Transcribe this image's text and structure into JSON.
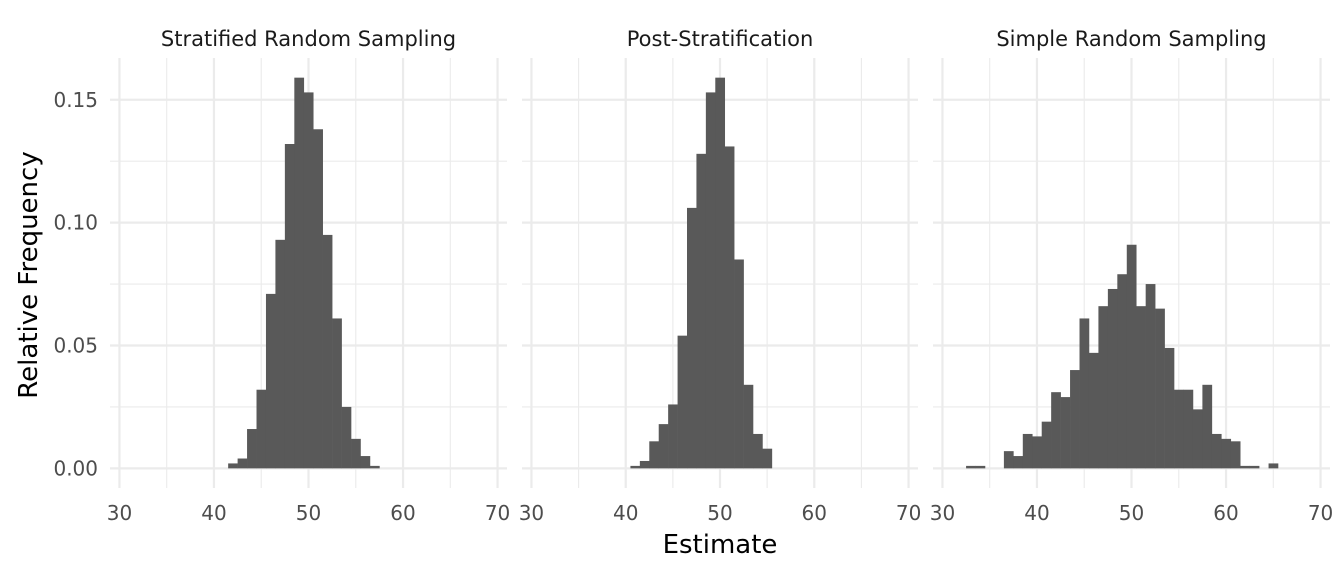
{
  "chart_data": {
    "type": "bar",
    "subtype": "histogram",
    "xlabel": "Estimate",
    "ylabel": "Relative Frequency",
    "xlim": [
      29,
      71
    ],
    "ylim": [
      -0.008,
      0.167
    ],
    "x_ticks": [
      30,
      40,
      50,
      60,
      70
    ],
    "y_ticks": [
      0.0,
      0.05,
      0.1,
      0.15
    ],
    "y_tick_labels": [
      "0.00",
      "0.05",
      "0.10",
      "0.15"
    ],
    "bin_width": 1,
    "grid": true,
    "bar_color": "#595959",
    "panels": [
      {
        "title": "Stratified Random Sampling",
        "bins": [
          {
            "x": 42,
            "y": 0.002
          },
          {
            "x": 43,
            "y": 0.004
          },
          {
            "x": 44,
            "y": 0.016
          },
          {
            "x": 45,
            "y": 0.032
          },
          {
            "x": 46,
            "y": 0.071
          },
          {
            "x": 47,
            "y": 0.093
          },
          {
            "x": 48,
            "y": 0.132
          },
          {
            "x": 49,
            "y": 0.159
          },
          {
            "x": 50,
            "y": 0.153
          },
          {
            "x": 51,
            "y": 0.138
          },
          {
            "x": 52,
            "y": 0.095
          },
          {
            "x": 53,
            "y": 0.061
          },
          {
            "x": 54,
            "y": 0.025
          },
          {
            "x": 55,
            "y": 0.012
          },
          {
            "x": 56,
            "y": 0.005
          },
          {
            "x": 57,
            "y": 0.001
          }
        ]
      },
      {
        "title": "Post-Stratification",
        "bins": [
          {
            "x": 41,
            "y": 0.001
          },
          {
            "x": 42,
            "y": 0.003
          },
          {
            "x": 43,
            "y": 0.011
          },
          {
            "x": 44,
            "y": 0.018
          },
          {
            "x": 45,
            "y": 0.026
          },
          {
            "x": 46,
            "y": 0.054
          },
          {
            "x": 47,
            "y": 0.106
          },
          {
            "x": 48,
            "y": 0.128
          },
          {
            "x": 49,
            "y": 0.153
          },
          {
            "x": 50,
            "y": 0.159
          },
          {
            "x": 51,
            "y": 0.131
          },
          {
            "x": 52,
            "y": 0.085
          },
          {
            "x": 53,
            "y": 0.034
          },
          {
            "x": 54,
            "y": 0.014
          },
          {
            "x": 55,
            "y": 0.008
          }
        ]
      },
      {
        "title": "Simple Random Sampling",
        "bins": [
          {
            "x": 33,
            "y": 0.001
          },
          {
            "x": 34,
            "y": 0.001
          },
          {
            "x": 37,
            "y": 0.007
          },
          {
            "x": 38,
            "y": 0.005
          },
          {
            "x": 39,
            "y": 0.014
          },
          {
            "x": 40,
            "y": 0.013
          },
          {
            "x": 41,
            "y": 0.019
          },
          {
            "x": 42,
            "y": 0.031
          },
          {
            "x": 43,
            "y": 0.029
          },
          {
            "x": 44,
            "y": 0.04
          },
          {
            "x": 45,
            "y": 0.061
          },
          {
            "x": 46,
            "y": 0.047
          },
          {
            "x": 47,
            "y": 0.066
          },
          {
            "x": 48,
            "y": 0.073
          },
          {
            "x": 49,
            "y": 0.079
          },
          {
            "x": 50,
            "y": 0.091
          },
          {
            "x": 51,
            "y": 0.066
          },
          {
            "x": 52,
            "y": 0.075
          },
          {
            "x": 53,
            "y": 0.065
          },
          {
            "x": 54,
            "y": 0.049
          },
          {
            "x": 55,
            "y": 0.032
          },
          {
            "x": 56,
            "y": 0.032
          },
          {
            "x": 57,
            "y": 0.024
          },
          {
            "x": 58,
            "y": 0.034
          },
          {
            "x": 59,
            "y": 0.014
          },
          {
            "x": 60,
            "y": 0.012
          },
          {
            "x": 61,
            "y": 0.011
          },
          {
            "x": 62,
            "y": 0.001
          },
          {
            "x": 63,
            "y": 0.001
          },
          {
            "x": 65,
            "y": 0.002
          }
        ]
      }
    ]
  }
}
